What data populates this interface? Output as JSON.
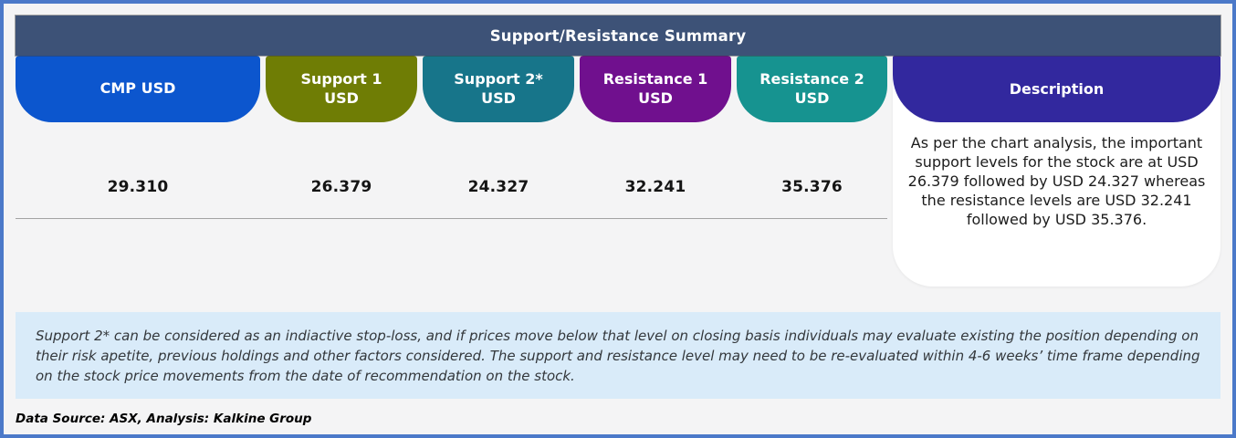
{
  "title": "Support/Resistance Summary",
  "colors": {
    "frame_border": "#4b79c9",
    "title_bar": "#3d5277",
    "footnote_bg": "#d9ebf9",
    "description_header": "#32289e"
  },
  "columns": [
    {
      "label": "CMP USD",
      "value": "29.310",
      "color": "#0c56ce"
    },
    {
      "label": "Support 1 USD",
      "value": "26.379",
      "color": "#6f7d05"
    },
    {
      "label": "Support 2* USD",
      "value": "24.327",
      "color": "#17758a"
    },
    {
      "label": "Resistance 1 USD",
      "value": "32.241",
      "color": "#70108e"
    },
    {
      "label": "Resistance 2 USD",
      "value": "35.376",
      "color": "#169390"
    }
  ],
  "description": {
    "header": "Description",
    "text": "As per the chart analysis, the important support levels for the stock are at USD 26.379 followed by USD 24.327 whereas the resistance levels are USD 32.241 followed by USD 35.376."
  },
  "footnote": {
    "text": "Support 2* can be considered as an indiactive stop-loss, and if prices move below that level on closing basis individuals may evaluate existing the position depending on their risk apetite, previous holdings and other factors considered. The support and resistance level may need to be re-evaluated within 4-6 weeks’ time frame depending on the stock price movements from  the date of recommendation on the stock."
  },
  "source": {
    "text": "Data Source: ASX, Analysis: Kalkine Group"
  }
}
